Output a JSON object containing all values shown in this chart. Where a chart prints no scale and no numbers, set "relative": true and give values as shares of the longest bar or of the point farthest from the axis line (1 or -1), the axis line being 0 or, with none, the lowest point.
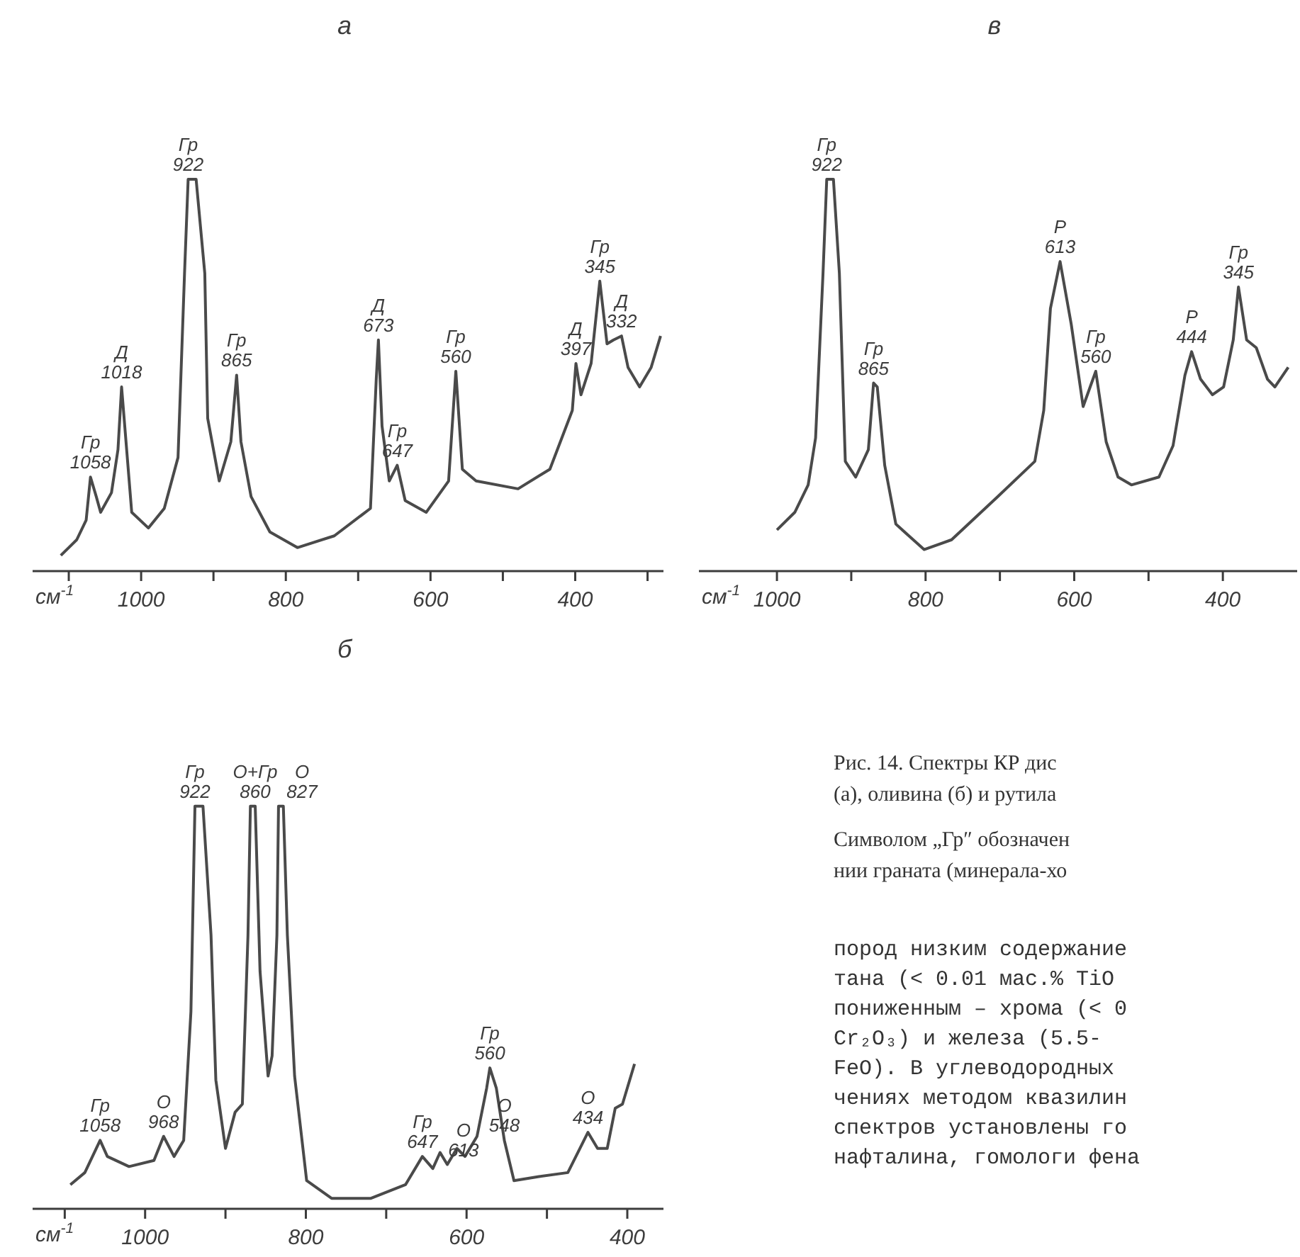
{
  "chart_data": [
    {
      "type": "line",
      "title": "а",
      "xlabel": "см$^{-1}$",
      "relative": true,
      "xlim": [
        1150,
        278
      ],
      "xticks": [
        {
          "value": 1100,
          "label": null
        },
        1000,
        {
          "value": 900,
          "label": null
        },
        800,
        {
          "value": 700,
          "label": null
        },
        600,
        {
          "value": 500,
          "label": null
        },
        400,
        {
          "value": 300,
          "label": null
        }
      ],
      "x": [
        1111,
        1089,
        1076,
        1070,
        1062,
        1056,
        1041,
        1032,
        1027,
        1020,
        1013,
        990,
        968,
        949,
        940,
        935,
        924,
        912,
        908,
        892,
        876,
        868,
        862,
        848,
        822,
        784,
        733,
        683,
        675,
        672,
        667,
        657,
        646,
        635,
        606,
        575,
        565,
        556,
        537,
        479,
        435,
        404,
        399,
        392,
        378,
        366,
        356,
        347,
        336,
        327,
        311,
        295,
        282
      ],
      "series": [
        {
          "color": "#4a4a4a",
          "values": [
            0.04,
            0.08,
            0.13,
            0.24,
            0.19,
            0.15,
            0.2,
            0.31,
            0.47,
            0.31,
            0.15,
            0.11,
            0.16,
            0.29,
            0.76,
            1,
            1,
            0.76,
            0.39,
            0.23,
            0.33,
            0.5,
            0.33,
            0.19,
            0.1,
            0.06,
            0.09,
            0.16,
            0.49,
            0.59,
            0.37,
            0.23,
            0.27,
            0.18,
            0.15,
            0.23,
            0.51,
            0.26,
            0.23,
            0.21,
            0.26,
            0.41,
            0.53,
            0.45,
            0.53,
            0.74,
            0.58,
            0.59,
            0.6,
            0.52,
            0.47,
            0.52,
            0.6
          ]
        }
      ],
      "annotations": [
        {
          "text": "Гр\n1058",
          "x": 1070,
          "y": 0.24
        },
        {
          "text": "Д\n1018",
          "x": 1027,
          "y": 0.47
        },
        {
          "text": "Гр\n922",
          "x": 935,
          "y": 1
        },
        {
          "text": "Гр\n865",
          "x": 868,
          "y": 0.5
        },
        {
          "text": "Д\n673",
          "x": 672,
          "y": 0.59
        },
        {
          "text": "Гр\n647",
          "x": 646,
          "y": 0.27
        },
        {
          "text": "Гр\n560",
          "x": 565,
          "y": 0.51
        },
        {
          "text": "Д\n397",
          "x": 399,
          "y": 0.53
        },
        {
          "text": "Гр\n345",
          "x": 366,
          "y": 0.74
        },
        {
          "text": "Д\n332",
          "x": 336,
          "y": 0.6
        }
      ]
    },
    {
      "type": "line",
      "title": "в",
      "xlabel": "см$^{-1}$",
      "relative": true,
      "xlim": [
        1105,
        300
      ],
      "xticks": [
        1000,
        {
          "value": 900,
          "label": null
        },
        800,
        {
          "value": 700,
          "label": null
        },
        600,
        {
          "value": 500,
          "label": null
        },
        400
      ],
      "x": [
        1000,
        976,
        958,
        948,
        938,
        933,
        924,
        916,
        908,
        894,
        877,
        870,
        865,
        855,
        840,
        802,
        765,
        703,
        653,
        641,
        632,
        619,
        604,
        588,
        571,
        557,
        541,
        523,
        486,
        467,
        451,
        442,
        430,
        414,
        399,
        386,
        379,
        368,
        355,
        340,
        330,
        312
      ],
      "series": [
        {
          "color": "#4a4a4a",
          "values": [
            0.105,
            0.15,
            0.22,
            0.34,
            0.76,
            1,
            1,
            0.76,
            0.28,
            0.24,
            0.31,
            0.48,
            0.47,
            0.27,
            0.12,
            0.055,
            0.08,
            0.19,
            0.28,
            0.41,
            0.67,
            0.79,
            0.63,
            0.42,
            0.51,
            0.33,
            0.24,
            0.22,
            0.24,
            0.32,
            0.5,
            0.56,
            0.49,
            0.45,
            0.47,
            0.59,
            0.725,
            0.59,
            0.57,
            0.49,
            0.47,
            0.52
          ]
        }
      ],
      "annotations": [
        {
          "text": "Гр\n922",
          "x": 933,
          "y": 1
        },
        {
          "text": "Гр\n865",
          "x": 870,
          "y": 0.48
        },
        {
          "text": "Р\n613",
          "x": 619,
          "y": 0.79
        },
        {
          "text": "Гр\n560",
          "x": 571,
          "y": 0.51
        },
        {
          "text": "Р\n444",
          "x": 442,
          "y": 0.56
        },
        {
          "text": "Гр\n345",
          "x": 379,
          "y": 0.725
        }
      ]
    },
    {
      "type": "line",
      "title": "б",
      "xlabel": "см$^{-1}$",
      "relative": true,
      "xlim": [
        1140,
        355
      ],
      "xticks": [
        {
          "value": 1100,
          "label": null
        },
        1000,
        {
          "value": 900,
          "label": null
        },
        800,
        {
          "value": 700,
          "label": null
        },
        600,
        {
          "value": 500,
          "label": null
        },
        400
      ],
      "x": [
        1093,
        1075,
        1056,
        1047,
        1020,
        989,
        977,
        964,
        952,
        943,
        938,
        928,
        918,
        912,
        900,
        888,
        879,
        872,
        869,
        863,
        857,
        847,
        842,
        836,
        834,
        828,
        823,
        814,
        799,
        768,
        719,
        676,
        655,
        642,
        633,
        624,
        612,
        602,
        587,
        575,
        571,
        563,
        553,
        541,
        510,
        474,
        459,
        449,
        437,
        425,
        415,
        406,
        400,
        391
      ],
      "series": [
        {
          "color": "#4a4a4a",
          "values": [
            0.06,
            0.09,
            0.17,
            0.13,
            0.105,
            0.12,
            0.18,
            0.13,
            0.17,
            0.49,
            1,
            1,
            0.68,
            0.32,
            0.15,
            0.24,
            0.26,
            0.68,
            1,
            1,
            0.59,
            0.33,
            0.38,
            0.68,
            1,
            1,
            0.68,
            0.33,
            0.07,
            0.026,
            0.026,
            0.06,
            0.13,
            0.1,
            0.14,
            0.11,
            0.15,
            0.13,
            0.18,
            0.3,
            0.35,
            0.3,
            0.17,
            0.07,
            0.08,
            0.09,
            0.15,
            0.19,
            0.15,
            0.15,
            0.25,
            0.26,
            0.3,
            0.36
          ]
        }
      ],
      "annotations": [
        {
          "text": "Гр\n1058",
          "x": 1056,
          "y": 0.17
        },
        {
          "text": "О\n968",
          "x": 977,
          "y": 0.18
        },
        {
          "text": "Гр\n922",
          "x": 938,
          "y": 1
        },
        {
          "text": "О+Гр\n860",
          "x": 863,
          "y": 1
        },
        {
          "text": "О\n827",
          "x": 828,
          "y": 1
        },
        {
          "text": "Гр\n647",
          "x": 655,
          "y": 0.13
        },
        {
          "text": "О\n613",
          "x": 624,
          "y": 0.11
        },
        {
          "text": "Гр\n560",
          "x": 571,
          "y": 0.35
        },
        {
          "text": "О\n548",
          "x": 553,
          "y": 0.17
        },
        {
          "text": "О\n434",
          "x": 449,
          "y": 0.19
        }
      ]
    },
    {
      "type": "other",
      "annotations": [
        "Рис. 14. Спектры КР дис",
        "(а), оливина (б) и рутила",
        "Символом „Гр″ обозначен",
        "нии граната (минерала-хо",
        "пород низким содержание",
        "тана (< 0.01 мас.% TiO",
        "пониженным – хрома (< 0",
        "Cr₂O₃) и железа (5.5-",
        "FeO). В углеводородных",
        "чениях методом квазилин",
        "спектров установлены го",
        "нафталина, гомологи фена"
      ]
    }
  ]
}
